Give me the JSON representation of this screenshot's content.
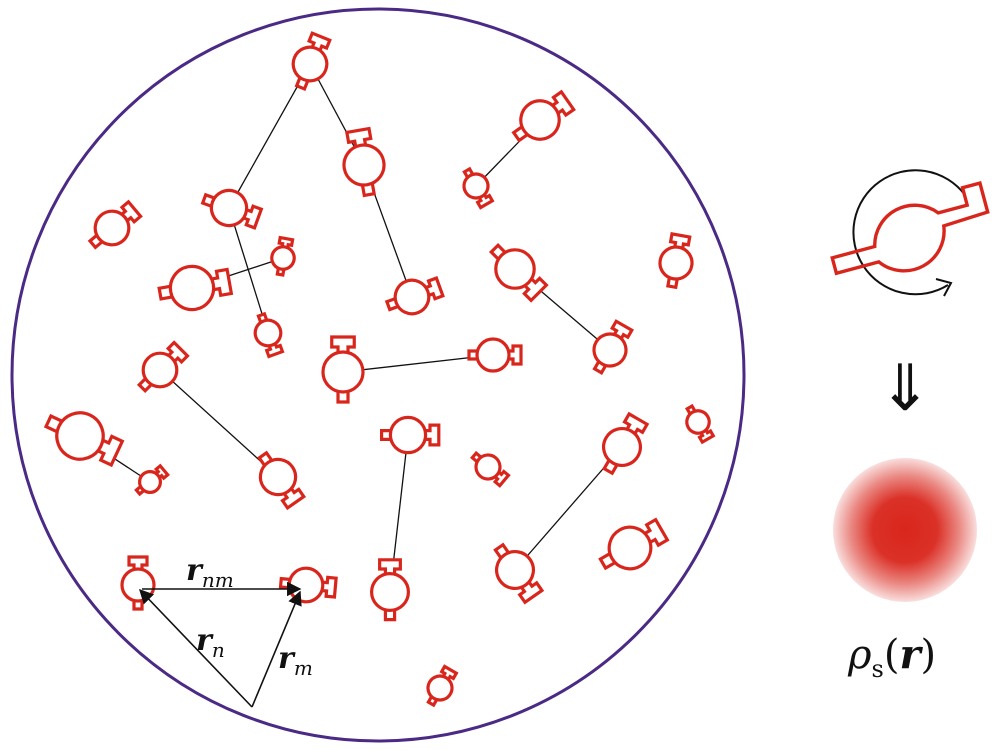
{
  "labels": {
    "r_nm": "r",
    "r_nm_sub": "nm",
    "r_n": "r",
    "r_n_sub": "n",
    "r_m": "r",
    "r_m_sub": "m",
    "rho": "ρ",
    "rho_sub": "s",
    "rho_arg": "r",
    "arrow_glyph": "⇓"
  },
  "colors": {
    "molecule": "#d9261c",
    "boundary": "#4b2a86",
    "bond": "#111111",
    "density": "#d9261c"
  },
  "icons": {
    "molecule": "molecule-icon",
    "rotation": "rotation-arrow-icon",
    "density": "density-blob-icon"
  }
}
